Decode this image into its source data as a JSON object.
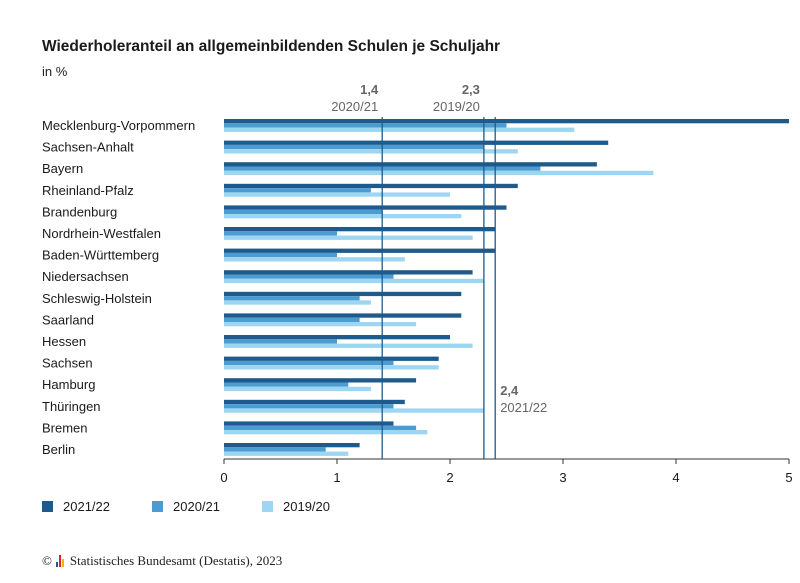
{
  "header": {
    "title": "Wiederholeranteil an allgemeinbildenden Schulen je Schuljahr",
    "unit": "in %"
  },
  "colors": {
    "y2021_22": "#1e5b8c",
    "y2020_21": "#4d9cd1",
    "y2019_20": "#9dd6f2",
    "reference_line": "#1e5b8c"
  },
  "chart_data": {
    "type": "bar",
    "orientation": "horizontal",
    "title": "Wiederholeranteil an allgemeinbildenden Schulen je Schuljahr",
    "unit": "in %",
    "xlim": [
      0,
      5
    ],
    "xticks": [
      "0",
      "1",
      "2",
      "3",
      "4",
      "5"
    ],
    "categories": [
      "Mecklenburg-Vorpommern",
      "Sachsen-Anhalt",
      "Bayern",
      "Rheinland-Pfalz",
      "Brandenburg",
      "Nordrhein-Westfalen",
      "Baden-Württemberg",
      "Niedersachsen",
      "Schleswig-Holstein",
      "Saarland",
      "Hessen",
      "Sachsen",
      "Hamburg",
      "Thüringen",
      "Bremen",
      "Berlin"
    ],
    "series": [
      {
        "name": "2021/22",
        "color": "#1e5b8c",
        "values": [
          5.0,
          3.4,
          3.3,
          2.6,
          2.5,
          2.4,
          2.4,
          2.2,
          2.1,
          2.1,
          2.0,
          1.9,
          1.7,
          1.6,
          1.5,
          1.2
        ]
      },
      {
        "name": "2020/21",
        "color": "#4d9cd1",
        "values": [
          2.5,
          2.3,
          2.8,
          1.3,
          1.4,
          1.0,
          1.0,
          1.5,
          1.2,
          1.2,
          1.0,
          1.5,
          1.1,
          1.5,
          1.7,
          0.9
        ]
      },
      {
        "name": "2019/20",
        "color": "#9dd6f2",
        "values": [
          3.1,
          2.6,
          3.8,
          2.0,
          2.1,
          2.2,
          1.6,
          2.3,
          1.3,
          1.7,
          2.2,
          1.9,
          1.3,
          2.3,
          1.8,
          1.1
        ]
      }
    ],
    "reference_lines": [
      {
        "value": 1.4,
        "value_label": "1,4",
        "period_label": "2020/21"
      },
      {
        "value": 2.3,
        "value_label": "2,3",
        "period_label": "2019/20"
      },
      {
        "value": 2.4,
        "value_label": "2,4",
        "period_label": "2021/22"
      }
    ],
    "legend": [
      "2021/22",
      "2020/21",
      "2019/20"
    ],
    "legend_position": "bottom"
  },
  "footer": {
    "copyright": "©",
    "source": "Statistisches Bundesamt (Destatis), 2023"
  }
}
